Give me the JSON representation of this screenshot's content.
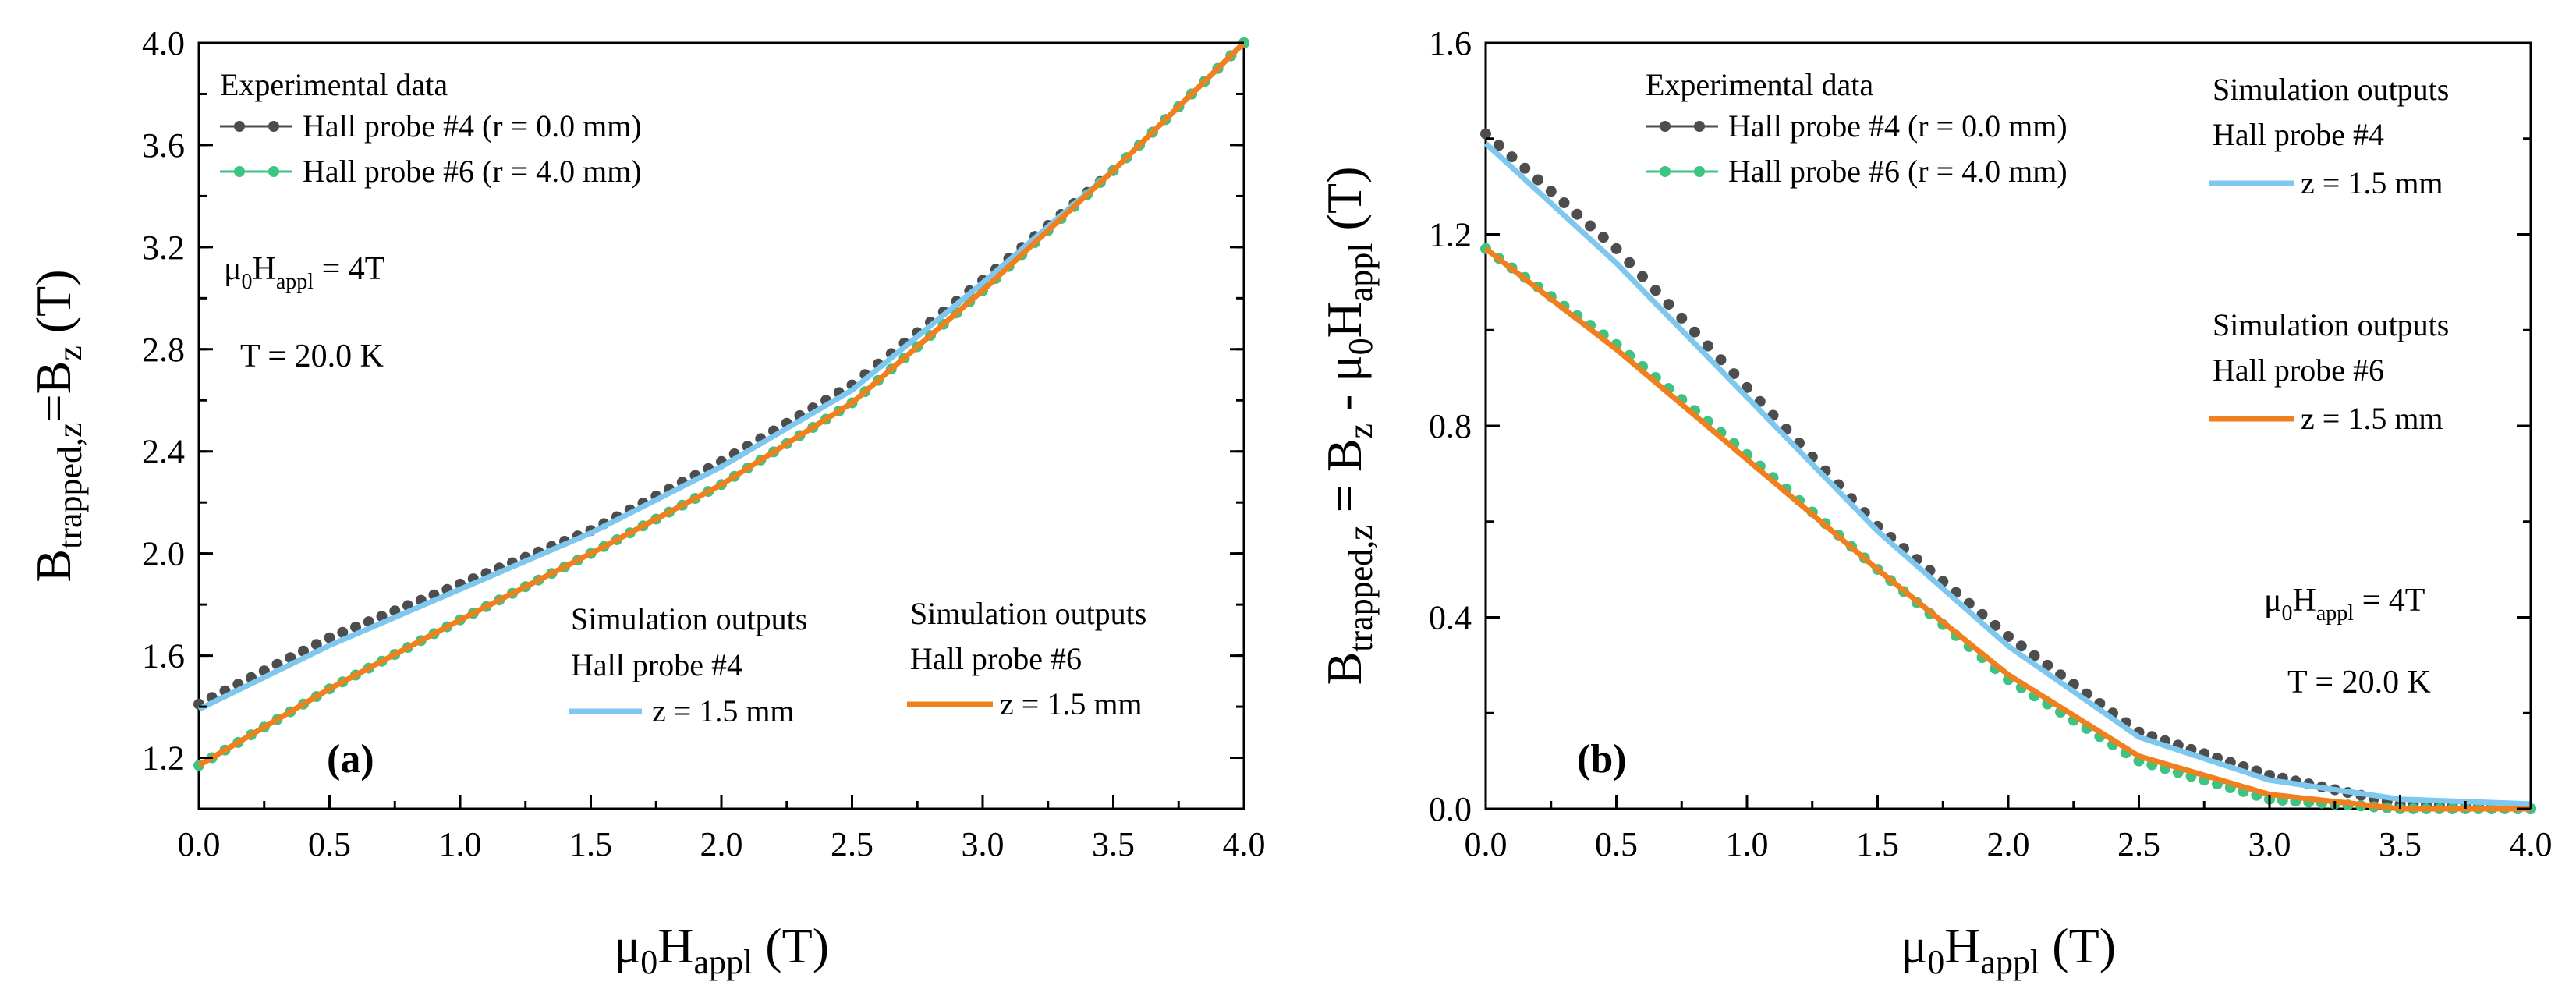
{
  "chart_data": [
    {
      "type": "line",
      "panel_label": "(a)",
      "xlabel": {
        "base": "μ",
        "sub1": "0",
        "mid": "H",
        "sub2": "appl",
        "unit": " (T)"
      },
      "ylabel": {
        "base": "B",
        "sub": "trapped,z",
        "mid": "=B",
        "sub2": "z",
        "unit": " (T)"
      },
      "xlim": [
        0,
        4
      ],
      "ylim": [
        1.0,
        4.0
      ],
      "xticks": [
        "0.0",
        "0.5",
        "1.0",
        "1.5",
        "2.0",
        "2.5",
        "3.0",
        "3.5",
        "4.0"
      ],
      "yticks": [
        "1.2",
        "1.6",
        "2.0",
        "2.4",
        "2.8",
        "3.2",
        "3.6",
        "4.0"
      ],
      "legend_exp": {
        "title": "Experimental data",
        "items": [
          {
            "label": "Hall probe #4 (r = 0.0 mm)",
            "color": "#4d4d4d"
          },
          {
            "label": "Hall probe #6 (r = 4.0 mm)",
            "color": "#3cc480"
          }
        ]
      },
      "legend_sim": [
        {
          "title1": "Simulation outputs",
          "title2": "Hall probe #4",
          "label": "z = 1.5 mm",
          "color": "#7ec8f0"
        },
        {
          "title1": "Simulation outputs",
          "title2": "Hall probe #6",
          "label": "z = 1.5 mm",
          "color": "#f07f1e"
        }
      ],
      "notes": {
        "field_base": "μ",
        "field_sub1": "0",
        "field_mid": "H",
        "field_sub2": "appl",
        "field_val": " = 4T",
        "temp": "T = 20.0 K"
      },
      "series": [
        {
          "name": "Hall probe #4 (r = 0.0 mm)",
          "kind": "markers",
          "color": "#4d4d4d",
          "x": [
            0.0,
            0.5,
            1.0,
            1.5,
            2.0,
            2.5,
            3.0,
            3.5,
            4.0
          ],
          "y": [
            1.41,
            1.67,
            1.88,
            2.09,
            2.36,
            2.66,
            3.07,
            3.5,
            4.0
          ]
        },
        {
          "name": "Hall probe #6 (r = 4.0 mm)",
          "kind": "markers",
          "color": "#3cc480",
          "x": [
            0.0,
            0.5,
            1.0,
            1.5,
            2.0,
            2.5,
            3.0,
            3.5,
            4.0
          ],
          "y": [
            1.17,
            1.47,
            1.74,
            2.0,
            2.27,
            2.59,
            3.03,
            3.5,
            4.0
          ]
        },
        {
          "name": "Simulation Hall probe #4 z = 1.5 mm",
          "kind": "line",
          "color": "#7ec8f0",
          "x": [
            0.0,
            0.5,
            1.0,
            1.5,
            2.0,
            2.5,
            3.0,
            3.5,
            4.0
          ],
          "y": [
            1.39,
            1.64,
            1.86,
            2.08,
            2.34,
            2.64,
            3.06,
            3.5,
            4.0
          ]
        },
        {
          "name": "Simulation Hall probe #6 z = 1.5 mm",
          "kind": "line",
          "color": "#f07f1e",
          "x": [
            0.0,
            0.5,
            1.0,
            1.5,
            2.0,
            2.5,
            3.0,
            3.5,
            4.0
          ],
          "y": [
            1.17,
            1.47,
            1.74,
            2.0,
            2.27,
            2.59,
            3.03,
            3.5,
            4.0
          ]
        }
      ]
    },
    {
      "type": "line",
      "panel_label": "(b)",
      "xlabel": {
        "base": "μ",
        "sub1": "0",
        "mid": "H",
        "sub2": "appl",
        "unit": " (T)"
      },
      "ylabel": {
        "base": "B",
        "sub": "trapped,z",
        "mid": " = B",
        "sub2": "z",
        "tail": " - μ",
        "sub3": "0",
        "tail2": "H",
        "sub4": "appl",
        "unit": " (T)"
      },
      "xlim": [
        0,
        4
      ],
      "ylim": [
        0,
        1.6
      ],
      "xticks": [
        "0.0",
        "0.5",
        "1.0",
        "1.5",
        "2.0",
        "2.5",
        "3.0",
        "3.5",
        "4.0"
      ],
      "yticks": [
        "0.0",
        "0.4",
        "0.8",
        "1.2",
        "1.6"
      ],
      "legend_exp": {
        "title": "Experimental data",
        "items": [
          {
            "label": "Hall probe #4 (r = 0.0 mm)",
            "color": "#4d4d4d"
          },
          {
            "label": "Hall probe #6 (r = 4.0 mm)",
            "color": "#3cc480"
          }
        ]
      },
      "legend_sim": [
        {
          "title1": "Simulation outputs",
          "title2": "Hall probe #4",
          "label": "z = 1.5 mm",
          "color": "#7ec8f0"
        },
        {
          "title1": "Simulation outputs",
          "title2": "Hall probe #6",
          "label": "z = 1.5 mm",
          "color": "#f07f1e"
        }
      ],
      "notes": {
        "field_base": "μ",
        "field_sub1": "0",
        "field_mid": "H",
        "field_sub2": "appl",
        "field_val": " = 4T",
        "temp": "T = 20.0 K"
      },
      "series": [
        {
          "name": "Hall probe #4 (r = 0.0 mm)",
          "kind": "markers",
          "color": "#4d4d4d",
          "x": [
            0.0,
            0.5,
            1.0,
            1.5,
            2.0,
            2.5,
            3.0,
            3.5,
            4.0
          ],
          "y": [
            1.41,
            1.17,
            0.88,
            0.59,
            0.36,
            0.16,
            0.07,
            0.01,
            0.0
          ]
        },
        {
          "name": "Hall probe #6 (r = 4.0 mm)",
          "kind": "markers",
          "color": "#3cc480",
          "x": [
            0.0,
            0.5,
            1.0,
            1.5,
            2.0,
            2.5,
            3.0,
            3.5,
            4.0
          ],
          "y": [
            1.17,
            0.97,
            0.74,
            0.5,
            0.27,
            0.1,
            0.02,
            0.0,
            0.0
          ]
        },
        {
          "name": "Simulation Hall probe #4 z = 1.5 mm",
          "kind": "line",
          "color": "#7ec8f0",
          "x": [
            0.0,
            0.5,
            1.0,
            1.5,
            2.0,
            2.5,
            3.0,
            3.5,
            4.0
          ],
          "y": [
            1.39,
            1.14,
            0.86,
            0.58,
            0.34,
            0.15,
            0.06,
            0.02,
            0.01
          ]
        },
        {
          "name": "Simulation Hall probe #6 z = 1.5 mm",
          "kind": "line",
          "color": "#f07f1e",
          "x": [
            0.0,
            0.5,
            1.0,
            1.5,
            2.0,
            2.5,
            3.0,
            3.5,
            4.0
          ],
          "y": [
            1.17,
            0.96,
            0.73,
            0.5,
            0.28,
            0.11,
            0.03,
            0.0,
            0.0
          ]
        }
      ]
    }
  ]
}
